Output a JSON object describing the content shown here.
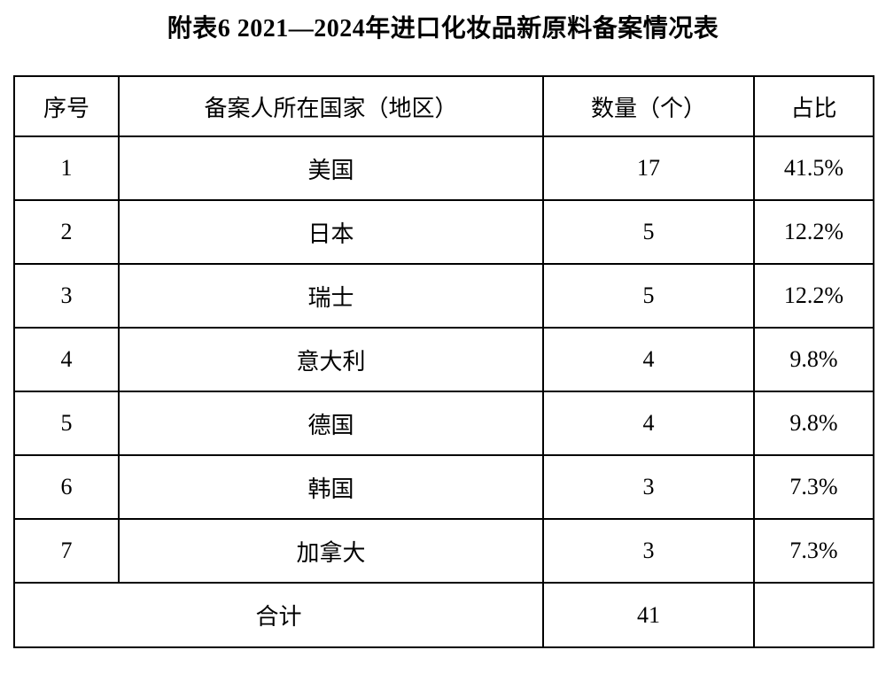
{
  "title": "附表6 2021—2024年进口化妆品新原料备案情况表",
  "table": {
    "headers": [
      "序号",
      "备案人所在国家（地区）",
      "数量（个）",
      "占比"
    ],
    "rows": [
      {
        "no": "1",
        "country": "美国",
        "count": "17",
        "share": "41.5%"
      },
      {
        "no": "2",
        "country": "日本",
        "count": "5",
        "share": "12.2%"
      },
      {
        "no": "3",
        "country": "瑞士",
        "count": "5",
        "share": "12.2%"
      },
      {
        "no": "4",
        "country": "意大利",
        "count": "4",
        "share": "9.8%"
      },
      {
        "no": "5",
        "country": "德国",
        "count": "4",
        "share": "9.8%"
      },
      {
        "no": "6",
        "country": "韩国",
        "count": "3",
        "share": "7.3%"
      },
      {
        "no": "7",
        "country": "加拿大",
        "count": "3",
        "share": "7.3%"
      }
    ],
    "total": {
      "label": "合计",
      "count": "41",
      "share": ""
    }
  }
}
